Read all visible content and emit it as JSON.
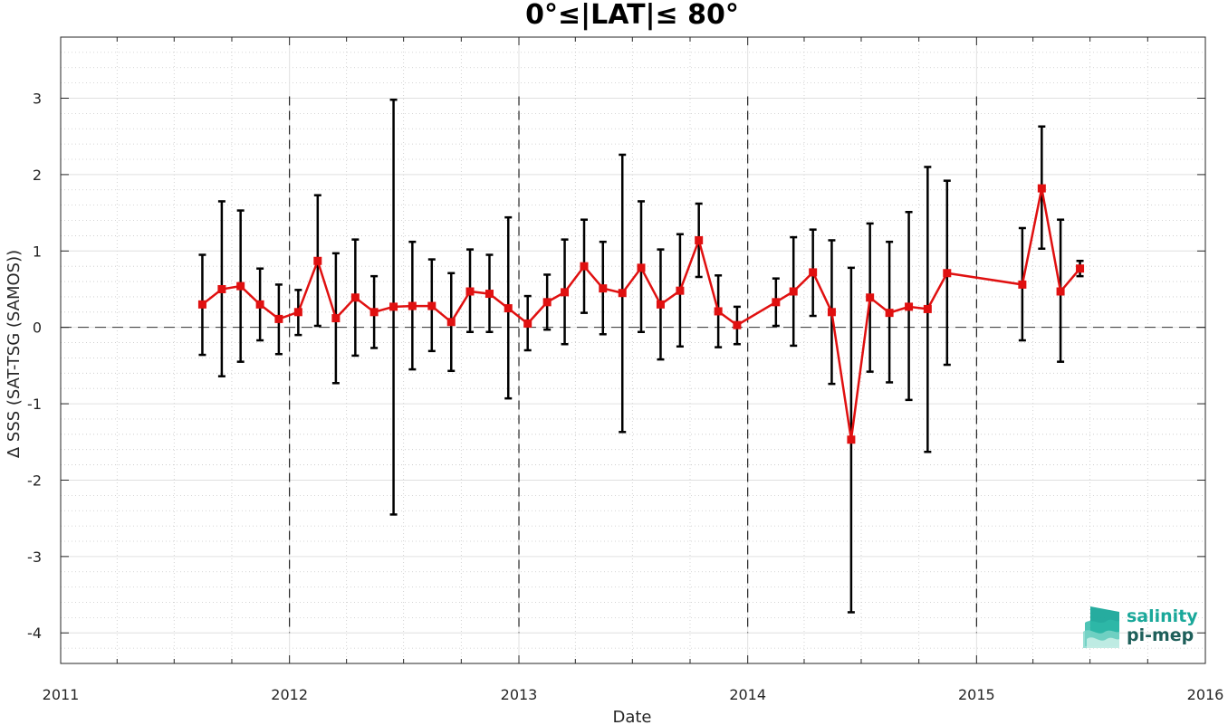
{
  "chart_data": {
    "type": "line",
    "title": "0°≤|LAT|≤ 80°",
    "xlabel": "Date",
    "ylabel": "Δ SSS (SAT-TSG (SAMOS))",
    "xlim": [
      "2011-01-01",
      "2016-01-01"
    ],
    "ylim": [
      -4.4,
      3.8
    ],
    "xticks": [
      "2011",
      "2012",
      "2013",
      "2014",
      "2015",
      "2016"
    ],
    "yticks": [
      -4,
      -3,
      -2,
      -1,
      0,
      1,
      2,
      3
    ],
    "grid": true,
    "minor_grid": true,
    "reference_line_y": 0,
    "year_divider_lines": [
      "2012-01-01",
      "2013-01-01",
      "2014-01-01",
      "2015-01-01"
    ],
    "series": [
      {
        "color": "#e01010",
        "marker": "square",
        "errorbar_color": "#000000",
        "x": [
          "2011-08-15",
          "2011-09-15",
          "2011-10-15",
          "2011-11-15",
          "2011-12-15",
          "2012-01-15",
          "2012-02-15",
          "2012-03-15",
          "2012-04-15",
          "2012-05-15",
          "2012-06-15",
          "2012-07-15",
          "2012-08-15",
          "2012-09-15",
          "2012-10-15",
          "2012-11-15",
          "2012-12-15",
          "2013-01-15",
          "2013-02-15",
          "2013-03-15",
          "2013-04-15",
          "2013-05-15",
          "2013-06-15",
          "2013-07-15",
          "2013-08-15",
          "2013-09-15",
          "2013-10-15",
          "2013-11-15",
          "2013-12-15",
          "2014-02-15",
          "2014-03-15",
          "2014-04-15",
          "2014-05-15",
          "2014-06-15",
          "2014-07-15",
          "2014-08-15",
          "2014-09-15",
          "2014-10-15",
          "2014-11-15",
          "2015-03-15",
          "2015-04-15",
          "2015-05-15",
          "2015-06-15"
        ],
        "y": [
          0.3,
          0.5,
          0.54,
          0.3,
          0.11,
          0.2,
          0.87,
          0.12,
          0.39,
          0.2,
          0.27,
          0.28,
          0.28,
          0.07,
          0.47,
          0.44,
          0.25,
          0.05,
          0.33,
          0.46,
          0.8,
          0.51,
          0.45,
          0.78,
          0.3,
          0.48,
          1.14,
          0.21,
          0.03,
          0.33,
          0.47,
          0.72,
          0.2,
          -1.47,
          0.39,
          0.19,
          0.27,
          0.24,
          0.71,
          0.56,
          1.82,
          0.47,
          0.77
        ],
        "err_low": [
          -0.36,
          -0.64,
          -0.45,
          -0.17,
          -0.35,
          -0.1,
          0.02,
          -0.73,
          -0.37,
          -0.27,
          -2.45,
          -0.55,
          -0.31,
          -0.57,
          -0.06,
          -0.06,
          -0.93,
          -0.3,
          -0.03,
          -0.22,
          0.19,
          -0.09,
          -1.37,
          -0.06,
          -0.42,
          -0.25,
          0.66,
          -0.26,
          -0.22,
          0.02,
          -0.24,
          0.15,
          -0.74,
          -3.73,
          -0.58,
          -0.72,
          -0.95,
          -1.63,
          -0.49,
          -0.17,
          1.03,
          -0.45,
          0.67
        ],
        "err_high": [
          0.95,
          1.65,
          1.53,
          0.77,
          0.56,
          0.49,
          1.73,
          0.97,
          1.15,
          0.67,
          2.98,
          1.12,
          0.89,
          0.71,
          1.02,
          0.95,
          1.44,
          0.41,
          0.69,
          1.15,
          1.41,
          1.12,
          2.26,
          1.65,
          1.02,
          1.22,
          1.62,
          0.68,
          0.27,
          0.64,
          1.18,
          1.28,
          1.14,
          0.78,
          1.36,
          1.12,
          1.51,
          2.1,
          1.92,
          1.3,
          2.63,
          1.41,
          0.87
        ]
      }
    ]
  },
  "logo": {
    "line1": "salinity",
    "line2": "pi-mep",
    "color_line1": "#1aa89a",
    "color_line2": "#1e5f5a"
  }
}
